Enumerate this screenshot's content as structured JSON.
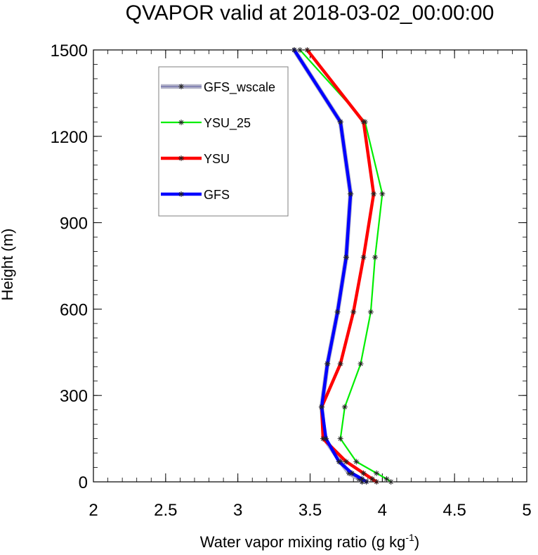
{
  "chart_data": {
    "type": "line",
    "title": "QVAPOR valid at 2018-03-02_00:00:00",
    "xlabel_main": "Water vapor mixing ratio (g kg",
    "xlabel_sup": "-1",
    "xlabel_close": ")",
    "ylabel": "Height (m)",
    "xlim": [
      2,
      5
    ],
    "ylim": [
      0,
      1500
    ],
    "x_ticks": [
      2,
      2.5,
      3,
      3.5,
      4,
      4.5,
      5
    ],
    "x_tick_labels": [
      "2",
      "2.5",
      "3",
      "3.5",
      "4",
      "4.5",
      "5"
    ],
    "y_ticks": [
      0,
      300,
      600,
      900,
      1200,
      1500
    ],
    "y_tick_labels": [
      "0",
      "300",
      "600",
      "900",
      "1200",
      "1500"
    ],
    "legend_position": "top-left",
    "grid": false,
    "heights": [
      0,
      10,
      30,
      70,
      150,
      260,
      410,
      590,
      780,
      1000,
      1250,
      1500
    ],
    "series": [
      {
        "name": "GFS_wscale",
        "color": "#b2b2c8",
        "values": [
          3.86,
          3.84,
          3.77,
          3.71,
          3.6,
          3.58,
          3.62,
          3.69,
          3.75,
          3.78,
          3.71,
          3.39
        ]
      },
      {
        "name": "YSU_25",
        "color": "#00ee00",
        "values": [
          4.06,
          4.03,
          3.96,
          3.82,
          3.71,
          3.74,
          3.85,
          3.92,
          3.95,
          4.0,
          3.88,
          3.43
        ]
      },
      {
        "name": "YSU",
        "color": "#ff0000",
        "values": [
          3.96,
          3.93,
          3.87,
          3.75,
          3.59,
          3.58,
          3.71,
          3.8,
          3.87,
          3.94,
          3.87,
          3.48
        ]
      },
      {
        "name": "GFS",
        "color": "#0000ff",
        "values": [
          3.89,
          3.86,
          3.79,
          3.7,
          3.61,
          3.58,
          3.62,
          3.69,
          3.75,
          3.78,
          3.71,
          3.39
        ]
      }
    ]
  }
}
